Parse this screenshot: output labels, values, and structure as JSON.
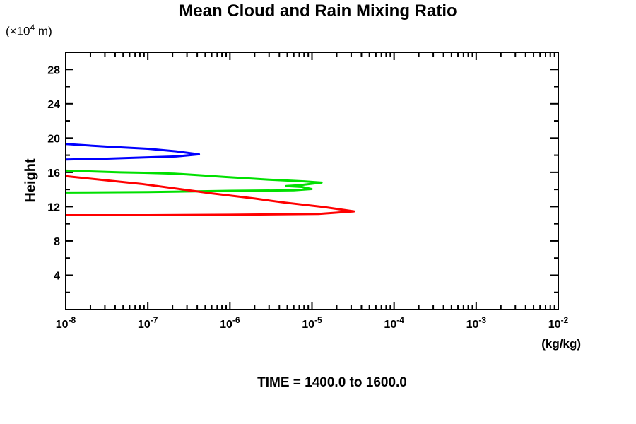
{
  "page": {
    "background": "#ffffff"
  },
  "chart_data": {
    "type": "line",
    "title": "Mean Cloud and Rain Mixing Ratio",
    "ylabel": "Height",
    "y_units": {
      "prefix": "(×10",
      "sup": "4",
      "suffix": " m)"
    },
    "x_units_label": "(kg/kg)",
    "annotation": "TIME = 1400.0 to 1600.0",
    "x_axis": {
      "scale": "log",
      "min": 1e-08,
      "max": 0.01,
      "tick_exponents": [
        -8,
        -7,
        -6,
        -5,
        -4,
        -3,
        -2
      ],
      "tick_base": "10"
    },
    "y_axis": {
      "min": 0,
      "max": 30,
      "major_ticks": [
        4,
        8,
        12,
        16,
        20,
        24,
        28
      ],
      "minor_ticks": [
        2,
        6,
        10,
        14,
        18,
        22,
        26,
        30
      ]
    },
    "grid": false,
    "legend": "none",
    "series": [
      {
        "name": "blue-profile",
        "color": "#0000ff",
        "points": [
          [
            1e-08,
            19.3
          ],
          [
            3.2e-08,
            19.0
          ],
          [
            1e-07,
            18.75
          ],
          [
            2.2e-07,
            18.45
          ],
          [
            4.2e-07,
            18.1
          ],
          [
            2.2e-07,
            17.85
          ],
          [
            1e-07,
            17.75
          ],
          [
            3.2e-08,
            17.6
          ],
          [
            1e-08,
            17.5
          ]
        ]
      },
      {
        "name": "green-profile",
        "color": "#00e000",
        "points": [
          [
            1e-08,
            16.2
          ],
          [
            4.6e-08,
            16.0
          ],
          [
            9e-08,
            15.95
          ],
          [
            1.4e-07,
            15.9
          ],
          [
            2.1e-07,
            15.85
          ],
          [
            4.5e-07,
            15.65
          ],
          [
            9e-07,
            15.45
          ],
          [
            3e-06,
            15.15
          ],
          [
            8e-06,
            14.95
          ],
          [
            1.31e-05,
            14.8
          ],
          [
            7e-06,
            14.5
          ],
          [
            4.85e-06,
            14.4
          ],
          [
            7.5e-06,
            14.3
          ],
          [
            9.9e-06,
            14.05
          ],
          [
            6e-06,
            13.9
          ],
          [
            1e-06,
            13.85
          ],
          [
            1e-07,
            13.7
          ],
          [
            1e-08,
            13.65
          ]
        ]
      },
      {
        "name": "red-profile",
        "color": "#ff0000",
        "points": [
          [
            1e-08,
            15.55
          ],
          [
            8.3e-08,
            14.65
          ],
          [
            6e-07,
            13.55
          ],
          [
            2e-06,
            12.95
          ],
          [
            4.4e-06,
            12.5
          ],
          [
            1.4e-05,
            11.95
          ],
          [
            3.25e-05,
            11.45
          ],
          [
            1.2e-05,
            11.15
          ],
          [
            1e-06,
            11.05
          ],
          [
            1e-07,
            11.0
          ],
          [
            1e-08,
            11.0
          ]
        ]
      }
    ]
  }
}
